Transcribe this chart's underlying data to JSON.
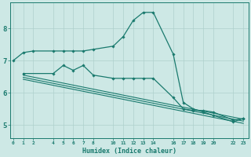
{
  "xlabel": "Humidex (Indice chaleur)",
  "bg_color": "#cde8e5",
  "grid_color": "#aed0cc",
  "line_color": "#1a7a6e",
  "xlim": [
    -0.3,
    23.5
  ],
  "ylim": [
    4.6,
    8.8
  ],
  "yticks": [
    5,
    6,
    7,
    8
  ],
  "xtick_positions": [
    0,
    1,
    2,
    4,
    5,
    6,
    7,
    8,
    10,
    11,
    12,
    13,
    14,
    16,
    17,
    18,
    19,
    20,
    22,
    23
  ],
  "xtick_labels": [
    "0",
    "1",
    "2",
    "4",
    "5",
    "6",
    "7",
    "8",
    "10",
    "11",
    "12",
    "13",
    "14",
    "16",
    "17",
    "18",
    "19",
    "20",
    "22",
    "23"
  ],
  "series": [
    {
      "x": [
        0,
        1,
        2,
        4,
        5,
        6,
        7,
        8,
        10,
        11,
        12,
        13,
        14,
        16,
        17,
        18,
        19,
        20,
        22,
        23
      ],
      "y": [
        7.0,
        7.25,
        7.3,
        7.3,
        7.3,
        7.3,
        7.3,
        7.35,
        7.45,
        7.75,
        8.25,
        8.5,
        8.5,
        7.2,
        5.7,
        5.5,
        5.4,
        5.3,
        5.1,
        5.2
      ],
      "marker": "D",
      "markersize": 1.8,
      "linewidth": 0.9
    },
    {
      "x": [
        1,
        4,
        5,
        6,
        7,
        8,
        10,
        11,
        12,
        13,
        14,
        16,
        17,
        18,
        19,
        20,
        22,
        23
      ],
      "y": [
        6.6,
        6.6,
        6.85,
        6.7,
        6.85,
        6.55,
        6.45,
        6.45,
        6.45,
        6.45,
        6.45,
        5.85,
        5.5,
        5.45,
        5.45,
        5.4,
        5.15,
        5.2
      ],
      "marker": "D",
      "markersize": 1.8,
      "linewidth": 0.9
    },
    {
      "x": [
        1,
        23
      ],
      "y": [
        6.55,
        5.18
      ],
      "marker": null,
      "linewidth": 0.8
    },
    {
      "x": [
        1,
        23
      ],
      "y": [
        6.48,
        5.12
      ],
      "marker": null,
      "linewidth": 0.8
    },
    {
      "x": [
        1,
        23
      ],
      "y": [
        6.42,
        5.05
      ],
      "marker": null,
      "linewidth": 0.8
    }
  ]
}
